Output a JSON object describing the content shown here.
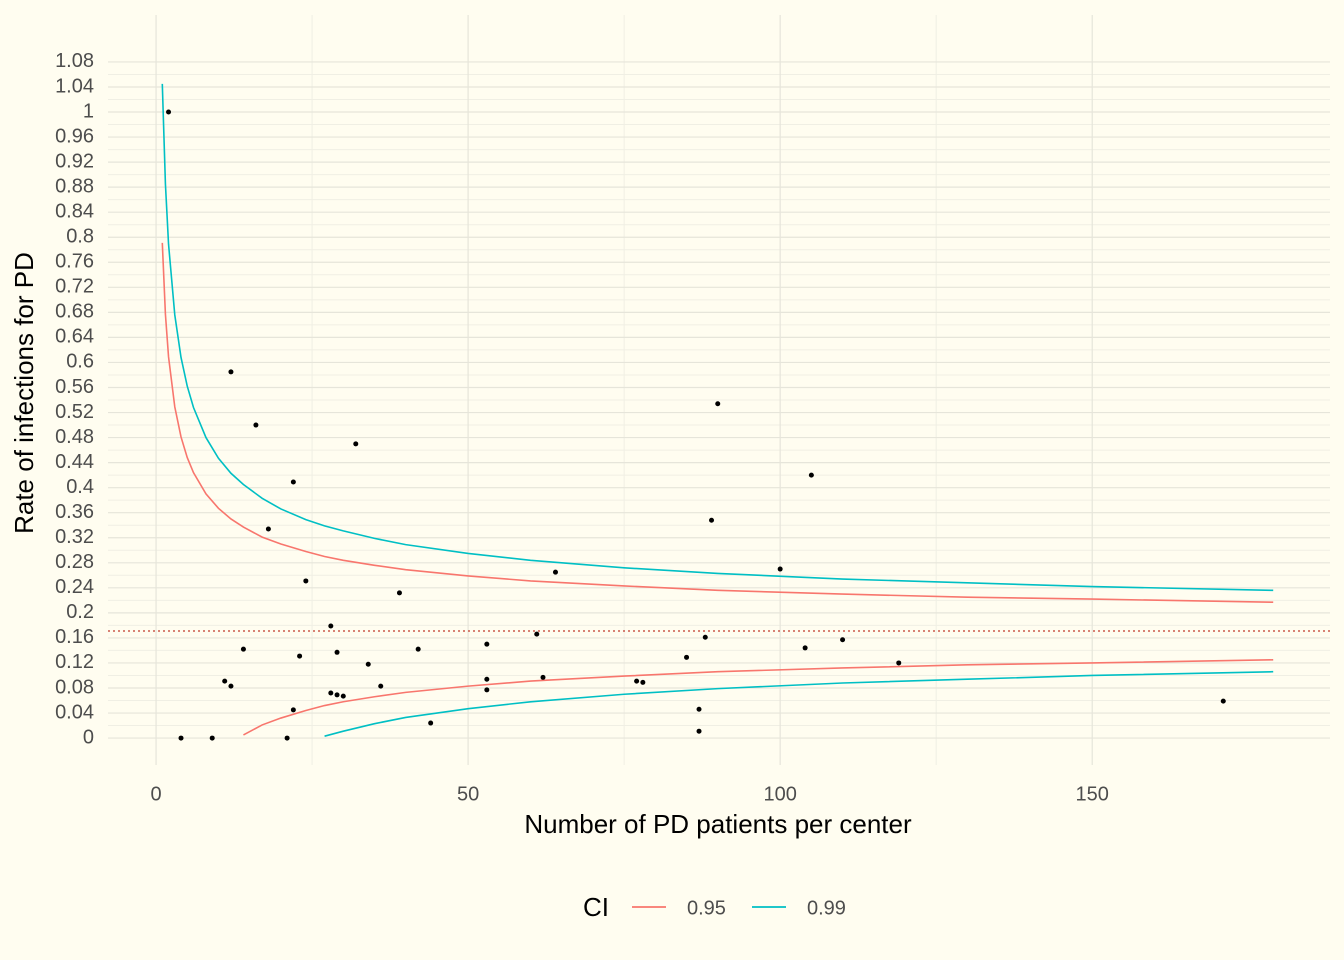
{
  "chart_data": {
    "type": "scatter",
    "x_label": "Number of PD patients per center",
    "y_label": "Rate of infections for PD",
    "legend_title": "CI",
    "legend_position": "bottom",
    "grid": true,
    "xlim": [
      -7.7,
      188.1
    ],
    "ylim": [
      -0.043,
      1.155
    ],
    "xticks": [
      0,
      50,
      100,
      150
    ],
    "yticks": [
      0,
      0.04,
      0.08,
      0.12,
      0.16,
      0.2,
      0.24,
      0.28,
      0.32,
      0.36,
      0.4,
      0.44,
      0.48,
      0.52,
      0.56,
      0.6,
      0.64,
      0.68,
      0.72,
      0.76,
      0.8,
      0.84,
      0.88,
      0.92,
      0.96,
      1,
      1.04,
      1.08
    ],
    "points": {
      "color": "#000000",
      "x": [
        2,
        12,
        16,
        22,
        18,
        32,
        24,
        39,
        28,
        14,
        23,
        29,
        34,
        42,
        11,
        12,
        28,
        29,
        30,
        36,
        22,
        44,
        4,
        9,
        21,
        53,
        53,
        53,
        61,
        62,
        64,
        77,
        78,
        85,
        88,
        87,
        87,
        89,
        90,
        100,
        105,
        104,
        110,
        119,
        171
      ],
      "y": [
        1,
        0.585,
        0.5,
        0.409,
        0.334,
        0.47,
        0.251,
        0.232,
        0.179,
        0.142,
        0.131,
        0.137,
        0.118,
        0.142,
        0.091,
        0.083,
        0.072,
        0.069,
        0.067,
        0.083,
        0.045,
        0.024,
        0,
        0,
        0,
        0.15,
        0.094,
        0.077,
        0.166,
        0.097,
        0.265,
        0.091,
        0.089,
        0.129,
        0.161,
        0.046,
        0.011,
        0.348,
        0.534,
        0.27,
        0.42,
        0.144,
        0.157,
        0.12,
        0.059
      ]
    },
    "reference_line": {
      "value": 0.171,
      "color": "#c0392b"
    },
    "series": [
      {
        "name": "0.95",
        "color": "#F8766D",
        "x": [
          1,
          1.5,
          2,
          3,
          4,
          5,
          6,
          8,
          10,
          12,
          14,
          17,
          20,
          24,
          27,
          30,
          35,
          40,
          50,
          60,
          75,
          90,
          110,
          130,
          150,
          179
        ],
        "upper": [
          0.791,
          0.677,
          0.609,
          0.529,
          0.481,
          0.448,
          0.424,
          0.39,
          0.367,
          0.35,
          0.337,
          0.321,
          0.31,
          0.298,
          0.29,
          0.284,
          0.276,
          0.269,
          0.259,
          0.251,
          0.243,
          0.236,
          0.23,
          0.225,
          0.222,
          0.217
        ],
        "lower": [
          null,
          null,
          null,
          null,
          null,
          null,
          null,
          null,
          null,
          null,
          0.005,
          0.021,
          0.032,
          0.044,
          0.052,
          0.058,
          0.066,
          0.073,
          0.083,
          0.091,
          0.099,
          0.106,
          0.112,
          0.117,
          0.12,
          0.125
        ]
      },
      {
        "name": "0.99",
        "color": "#00BFC4",
        "x": [
          1,
          1.5,
          2,
          3,
          4,
          5,
          6,
          8,
          10,
          12,
          14,
          17,
          20,
          24,
          27,
          30,
          35,
          40,
          50,
          60,
          75,
          90,
          110,
          130,
          150,
          179
        ],
        "upper": [
          1.045,
          0.885,
          0.789,
          0.676,
          0.608,
          0.562,
          0.528,
          0.48,
          0.447,
          0.423,
          0.405,
          0.383,
          0.366,
          0.349,
          0.339,
          0.331,
          0.319,
          0.309,
          0.295,
          0.284,
          0.272,
          0.263,
          0.254,
          0.248,
          0.242,
          0.236
        ],
        "lower": [
          null,
          null,
          null,
          null,
          null,
          null,
          null,
          null,
          null,
          null,
          null,
          null,
          null,
          null,
          0.003,
          0.011,
          0.023,
          0.033,
          0.047,
          0.058,
          0.07,
          0.079,
          0.088,
          0.094,
          0.1,
          0.106
        ]
      }
    ]
  }
}
